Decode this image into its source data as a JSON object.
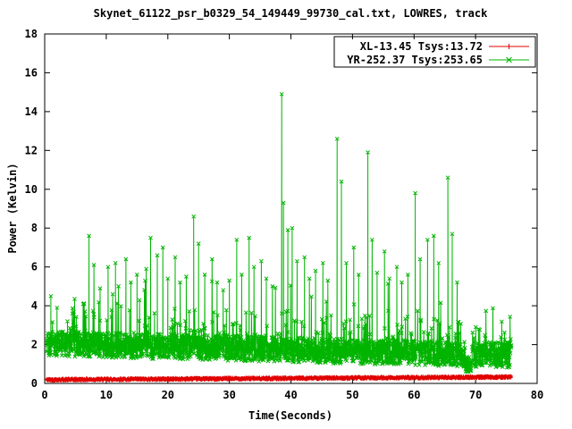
{
  "chart_data": {
    "type": "line",
    "title": "Skynet_61122_psr_b0329_54_149449_99730_cal.txt, LOWRES, track",
    "xlabel": "Time(Seconds)",
    "ylabel": "Power (Kelvin)",
    "xlim": [
      0,
      80
    ],
    "ylim": [
      0,
      18
    ],
    "xticks": [
      0,
      10,
      20,
      30,
      40,
      50,
      60,
      70,
      80
    ],
    "yticks": [
      0,
      2,
      4,
      6,
      8,
      10,
      12,
      14,
      16,
      18
    ],
    "grid": false,
    "legend_position": "top-right-inside",
    "series": [
      {
        "name": "XL-13.45 Tsys:13.72",
        "color": "#e00000",
        "marker": "plus",
        "model": {
          "x_start": 0.3,
          "x_end": 75.8,
          "points": 1600,
          "baseline_start": 0.19,
          "baseline_end": 0.33,
          "noise": 0.12,
          "seed": 42
        }
      },
      {
        "name": "YR-252.37 Tsys:253.65",
        "color": "#00b400",
        "marker": "x",
        "model": {
          "x_start": 0.3,
          "x_end": 75.8,
          "points": 2200,
          "baseline_start": 2.05,
          "baseline_end": 1.45,
          "noise": 1.3,
          "burst_prob": 0.1,
          "burst_amp": 1.8,
          "spike_prob": 0.02,
          "spike_amp": 3.0,
          "floor": 0.75,
          "seed": 1337
        },
        "dip": {
          "x_start": 68.3,
          "x_end": 69.4,
          "y_low": 0.55,
          "y_high": 1.45
        },
        "spikes": [
          [
            1.0,
            4.5
          ],
          [
            2.0,
            3.9
          ],
          [
            7.2,
            7.6
          ],
          [
            8.0,
            6.1
          ],
          [
            9.0,
            4.9
          ],
          [
            10.3,
            6.0
          ],
          [
            11.5,
            6.2
          ],
          [
            12.0,
            5.0
          ],
          [
            13.2,
            6.4
          ],
          [
            14.0,
            5.2
          ],
          [
            15.0,
            5.6
          ],
          [
            16.5,
            5.9
          ],
          [
            17.2,
            7.5
          ],
          [
            18.3,
            6.6
          ],
          [
            19.2,
            7.0
          ],
          [
            20.0,
            5.4
          ],
          [
            21.2,
            6.5
          ],
          [
            22.0,
            5.2
          ],
          [
            23.0,
            5.5
          ],
          [
            24.2,
            8.6
          ],
          [
            25.0,
            7.2
          ],
          [
            26.0,
            5.6
          ],
          [
            27.2,
            6.4
          ],
          [
            28.0,
            5.2
          ],
          [
            29.0,
            4.8
          ],
          [
            30.0,
            5.3
          ],
          [
            31.2,
            7.4
          ],
          [
            32.0,
            5.6
          ],
          [
            33.2,
            7.5
          ],
          [
            34.0,
            6.0
          ],
          [
            35.2,
            6.3
          ],
          [
            36.0,
            5.4
          ],
          [
            37.0,
            5.0
          ],
          [
            38.5,
            14.9
          ],
          [
            38.8,
            9.3
          ],
          [
            39.5,
            7.9
          ],
          [
            40.2,
            8.0
          ],
          [
            41.0,
            6.3
          ],
          [
            42.2,
            6.5
          ],
          [
            43.0,
            5.4
          ],
          [
            44.0,
            5.8
          ],
          [
            45.2,
            6.2
          ],
          [
            46.0,
            5.3
          ],
          [
            47.5,
            12.6
          ],
          [
            48.2,
            10.4
          ],
          [
            49.0,
            6.2
          ],
          [
            50.2,
            7.0
          ],
          [
            51.0,
            5.6
          ],
          [
            52.5,
            11.9
          ],
          [
            53.2,
            7.4
          ],
          [
            54.0,
            5.7
          ],
          [
            55.2,
            6.8
          ],
          [
            56.0,
            5.4
          ],
          [
            57.2,
            6.0
          ],
          [
            58.0,
            5.2
          ],
          [
            59.0,
            5.6
          ],
          [
            60.2,
            9.8
          ],
          [
            61.0,
            6.4
          ],
          [
            62.2,
            7.4
          ],
          [
            63.2,
            7.6
          ],
          [
            64.0,
            6.2
          ],
          [
            65.5,
            10.6
          ],
          [
            66.2,
            7.7
          ],
          [
            67.0,
            5.2
          ],
          [
            70.5,
            2.8
          ],
          [
            75.3,
            2.1
          ]
        ]
      }
    ]
  }
}
